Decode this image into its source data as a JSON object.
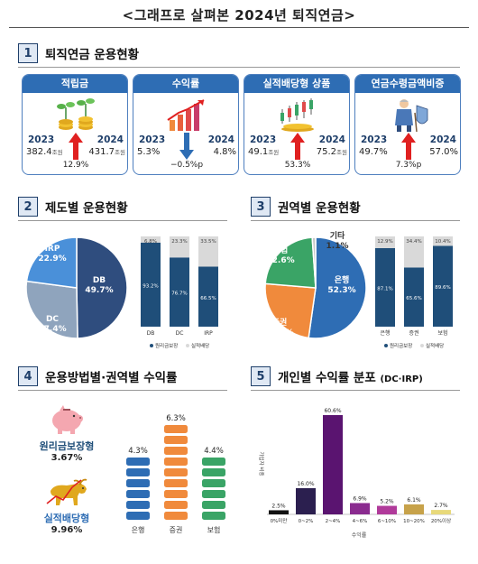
{
  "title": "<그래프로 살펴본 2024년 퇴직연금>",
  "sections": [
    {
      "num": "1",
      "title": "퇴직연금 운용현황"
    },
    {
      "num": "2",
      "title": "제도별 운용현황"
    },
    {
      "num": "3",
      "title": "권역별 운용현황"
    },
    {
      "num": "4",
      "title": "운용방법별·권역별 수익률"
    },
    {
      "num": "5",
      "title": "개인별 수익률 분포",
      "note": "(DC·IRP)"
    }
  ],
  "cards": [
    {
      "label": "적립금",
      "year_a": "2023",
      "year_b": "2024",
      "value_a": "382.4",
      "value_b": "431.7",
      "unit": "조원",
      "direction": "up",
      "change": "12.9%",
      "icon": "money-plant-icon"
    },
    {
      "label": "수익률",
      "year_a": "2023",
      "year_b": "2024",
      "value_a": "5.3%",
      "value_b": "4.8%",
      "unit": "",
      "direction": "down",
      "change": "−0.5%p",
      "icon": "rising-bars-icon"
    },
    {
      "label": "실적배당형 상품",
      "year_a": "2023",
      "year_b": "2024",
      "value_a": "49.1",
      "value_b": "75.2",
      "unit": "조원",
      "direction": "up",
      "change": "53.3%",
      "icon": "candlestick-icon"
    },
    {
      "label": "연금수령금액비중",
      "year_a": "2023",
      "year_b": "2024",
      "value_a": "49.7%",
      "value_b": "57.0%",
      "unit": "",
      "direction": "up",
      "change": "7.3%p",
      "icon": "retiree-icon"
    }
  ],
  "chart_data": [
    {
      "type": "pie",
      "labels": [
        "DB",
        "DC",
        "IRP"
      ],
      "values": [
        49.7,
        27.4,
        22.9
      ],
      "value_labels": [
        "49.7%",
        "27.4%",
        "22.9%"
      ],
      "colors": [
        "#2f4d7e",
        "#8fa4bd",
        "#4a90d9"
      ]
    },
    {
      "type": "bar",
      "stacked": true,
      "categories": [
        "DB",
        "DC",
        "IRP"
      ],
      "series": [
        {
          "name": "원리금보장",
          "values": [
            93.2,
            76.7,
            66.5
          ],
          "labels": [
            "93.2%",
            "76.7%",
            "66.5%"
          ],
          "color": "#1f4e79"
        },
        {
          "name": "실적배당",
          "values": [
            6.8,
            23.3,
            33.5
          ],
          "labels": [
            "6.8%",
            "23.3%",
            "33.5%"
          ],
          "color": "#d9d9d9"
        }
      ],
      "ylim": [
        0,
        100
      ],
      "legend": "bottom"
    },
    {
      "type": "pie",
      "labels": [
        "은행",
        "증권",
        "보험",
        "기타"
      ],
      "values": [
        52.3,
        24.1,
        22.6,
        1.1
      ],
      "value_labels": [
        "52.3%",
        "24.1%",
        "22.6%",
        "1.1%"
      ],
      "colors": [
        "#2e6db4",
        "#f08a3c",
        "#3aa466",
        "#c8c8c8"
      ]
    },
    {
      "type": "bar",
      "stacked": true,
      "categories": [
        "은행",
        "증권",
        "보험"
      ],
      "series": [
        {
          "name": "원리금보장",
          "values": [
            87.1,
            65.6,
            89.6
          ],
          "labels": [
            "87.1%",
            "65.6%",
            "89.6%"
          ],
          "color": "#1f4e79"
        },
        {
          "name": "실적배당",
          "values": [
            12.9,
            34.4,
            10.4
          ],
          "labels": [
            "12.9%",
            "34.4%",
            "10.4%"
          ],
          "color": "#d9d9d9"
        }
      ],
      "ylim": [
        0,
        100
      ],
      "legend": "bottom"
    },
    {
      "type": "bar",
      "categories": [
        "은행",
        "증권",
        "보험"
      ],
      "values": [
        4.3,
        6.3,
        4.4
      ],
      "value_labels": [
        "4.3%",
        "6.3%",
        "4.4%"
      ],
      "colors": [
        "#2e6db4",
        "#f08a3c",
        "#3aa466"
      ],
      "ylim": [
        0,
        7
      ]
    },
    {
      "type": "bar",
      "categories": [
        "0%미만",
        "0~2%",
        "2~4%",
        "4~6%",
        "6~10%",
        "10~20%",
        "20%이상"
      ],
      "values": [
        2.5,
        16.0,
        60.6,
        6.9,
        5.2,
        6.1,
        2.7
      ],
      "value_labels": [
        "2.5%",
        "16.0%",
        "60.6%",
        "6.9%",
        "5.2%",
        "6.1%",
        "2.7%"
      ],
      "colors": [
        "#111111",
        "#2b1f4f",
        "#5a1470",
        "#8a2b8f",
        "#b03a9a",
        "#c7a24a",
        "#e8d97a"
      ],
      "ylabel": "가입자 비중",
      "xlabel": "수익률",
      "ylim": [
        0,
        65
      ]
    }
  ],
  "returns_by_type": [
    {
      "name": "원리금보장형",
      "value": "3.67%",
      "color": "#1f4e79",
      "icon": "piggy-bank-icon"
    },
    {
      "name": "실적배당형",
      "value": "9.96%",
      "color": "#2e6db4",
      "icon": "bull-icon"
    }
  ]
}
